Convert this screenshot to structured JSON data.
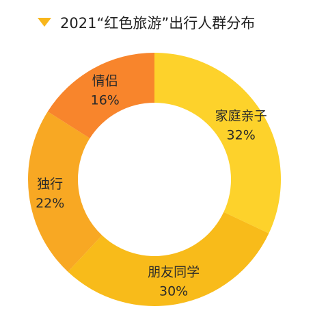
{
  "chart_data": {
    "type": "pie",
    "donut": true,
    "title": "2021“红色旅游”出行人群分布",
    "categories": [
      "家庭亲子",
      "朋友同学",
      "独行",
      "情侣"
    ],
    "values": [
      32,
      30,
      22,
      16
    ],
    "value_labels": [
      "32%",
      "30%",
      "22%",
      "16%"
    ],
    "unit": "%",
    "colors": [
      "#FDD22B",
      "#F8BB1A",
      "#F8A823",
      "#F8852C"
    ],
    "legend_marker_color": "#F8B61C",
    "start_angle_deg": 0,
    "direction": "clockwise",
    "legend": "top"
  }
}
